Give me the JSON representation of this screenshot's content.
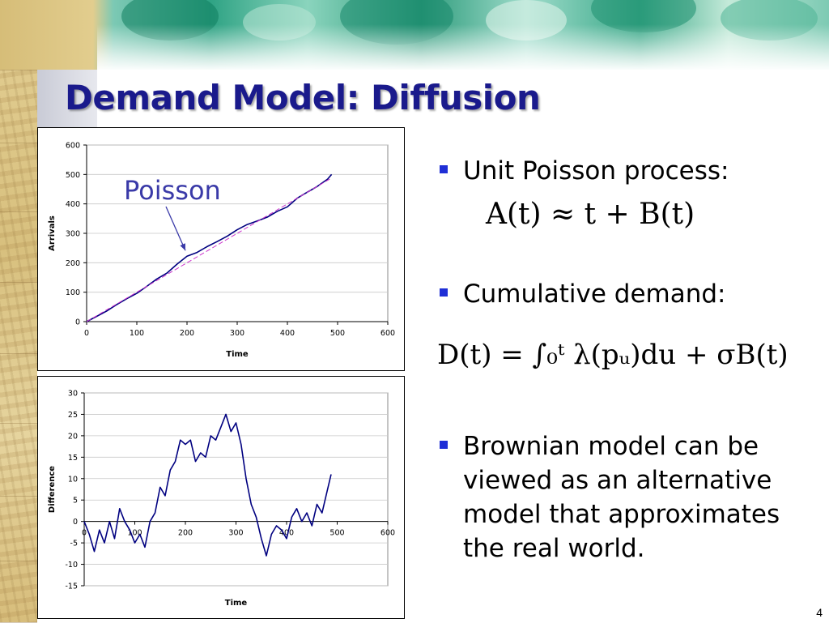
{
  "slide": {
    "title": "Demand Model: Diffusion",
    "page_number": "4"
  },
  "bullets": [
    {
      "text": "Unit Poisson process:",
      "formula": "A(t) ≈ t + B(t)"
    },
    {
      "text": "Cumulative demand:",
      "formula": "D(t) = ∫₀ᵗ λ(pᵤ)du + σB(t)"
    },
    {
      "text": "Brownian model can be viewed as an alternative model that approximates the real world."
    }
  ],
  "chart_data": [
    {
      "type": "line",
      "xlabel": "Time",
      "ylabel": "Arrivals",
      "xlim": [
        0,
        600
      ],
      "ylim": [
        0,
        600
      ],
      "xticks": [
        0,
        100,
        200,
        300,
        400,
        500,
        600
      ],
      "yticks": [
        0,
        100,
        200,
        300,
        400,
        500,
        600
      ],
      "grid": "horizontal",
      "annotation": {
        "text": "Poisson",
        "points_to": [
          200,
          225
        ]
      },
      "series": [
        {
          "color": "#000080",
          "style": "solid",
          "x": [
            0,
            20,
            40,
            60,
            80,
            100,
            120,
            140,
            160,
            180,
            200,
            220,
            240,
            260,
            280,
            300,
            320,
            340,
            360,
            380,
            400,
            420,
            440,
            460,
            480,
            488
          ],
          "y": [
            0,
            18,
            36,
            58,
            78,
            96,
            120,
            145,
            165,
            195,
            222,
            235,
            255,
            272,
            290,
            312,
            330,
            342,
            355,
            375,
            390,
            420,
            440,
            460,
            484,
            500
          ]
        },
        {
          "color": "#cc33cc",
          "style": "dashed",
          "x": [
            0,
            488
          ],
          "y": [
            0,
            488
          ]
        }
      ]
    },
    {
      "type": "line",
      "xlabel": "Time",
      "ylabel": "Difference",
      "xlim": [
        0,
        600
      ],
      "ylim": [
        -15,
        30
      ],
      "xticks": [
        0,
        100,
        200,
        300,
        400,
        500,
        600
      ],
      "yticks": [
        -15,
        -10,
        -5,
        0,
        5,
        10,
        15,
        20,
        25,
        30
      ],
      "grid": "horizontal",
      "series": [
        {
          "color": "#000080",
          "style": "solid",
          "x": [
            0,
            10,
            20,
            30,
            40,
            50,
            60,
            70,
            80,
            90,
            100,
            110,
            120,
            130,
            140,
            150,
            160,
            170,
            180,
            190,
            200,
            210,
            220,
            230,
            240,
            250,
            260,
            270,
            280,
            290,
            300,
            310,
            320,
            330,
            340,
            350,
            360,
            370,
            380,
            390,
            400,
            410,
            420,
            430,
            440,
            450,
            460,
            470,
            480,
            488
          ],
          "y": [
            0,
            -3,
            -7,
            -2,
            -5,
            0,
            -4,
            3,
            0,
            -2,
            -5,
            -3,
            -6,
            0,
            2,
            8,
            6,
            12,
            14,
            19,
            18,
            19,
            14,
            16,
            15,
            20,
            19,
            22,
            25,
            21,
            23,
            18,
            10,
            4,
            1,
            -4,
            -8,
            -3,
            -1,
            -2,
            -4,
            1,
            3,
            0,
            2,
            -1,
            4,
            2,
            7,
            11
          ]
        }
      ]
    }
  ]
}
